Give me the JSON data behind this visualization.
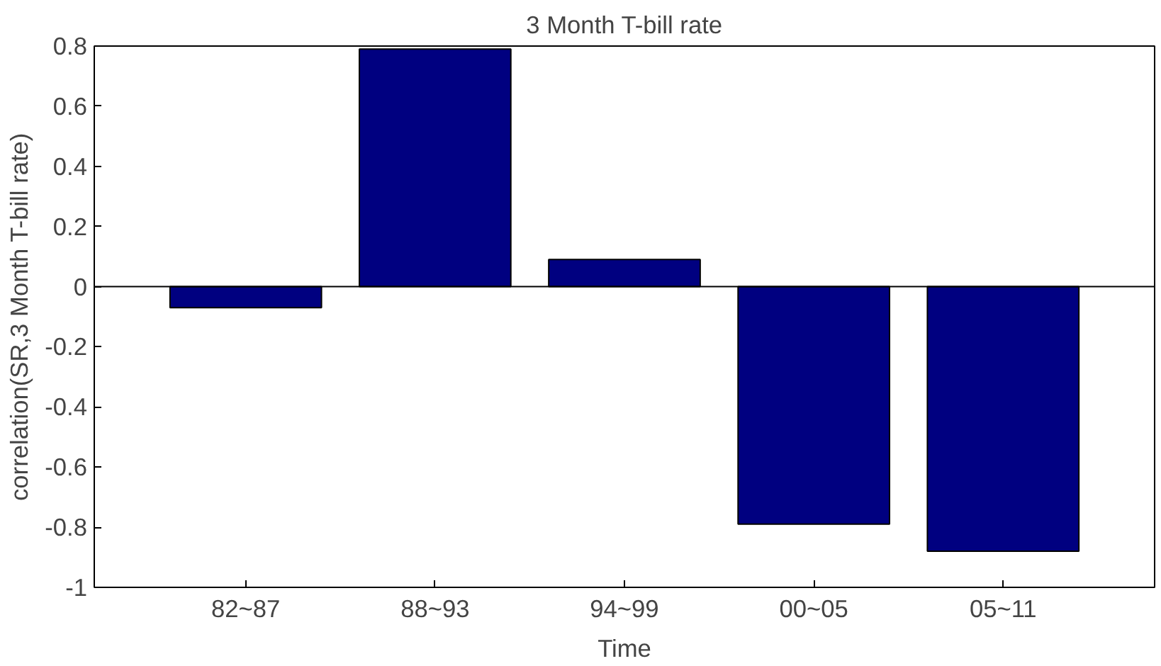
{
  "chart_data": {
    "type": "bar",
    "title": "3 Month T-bill rate",
    "xlabel": "Time",
    "ylabel": "correlation(SR,3 Month T-bill rate)",
    "categories": [
      "82~87",
      "88~93",
      "94~99",
      "00~05",
      "05~11"
    ],
    "values": [
      -0.07,
      0.79,
      0.09,
      -0.79,
      -0.88
    ],
    "color": "#000080",
    "ylim": [
      -1,
      0.8
    ],
    "yticks": [
      -1,
      -0.8,
      -0.6,
      -0.4,
      -0.2,
      0,
      0.2,
      0.4,
      0.6,
      0.8
    ],
    "grid": false,
    "ref_lines": [
      {
        "axis": "y",
        "value": 0,
        "color": "#000000"
      }
    ]
  }
}
